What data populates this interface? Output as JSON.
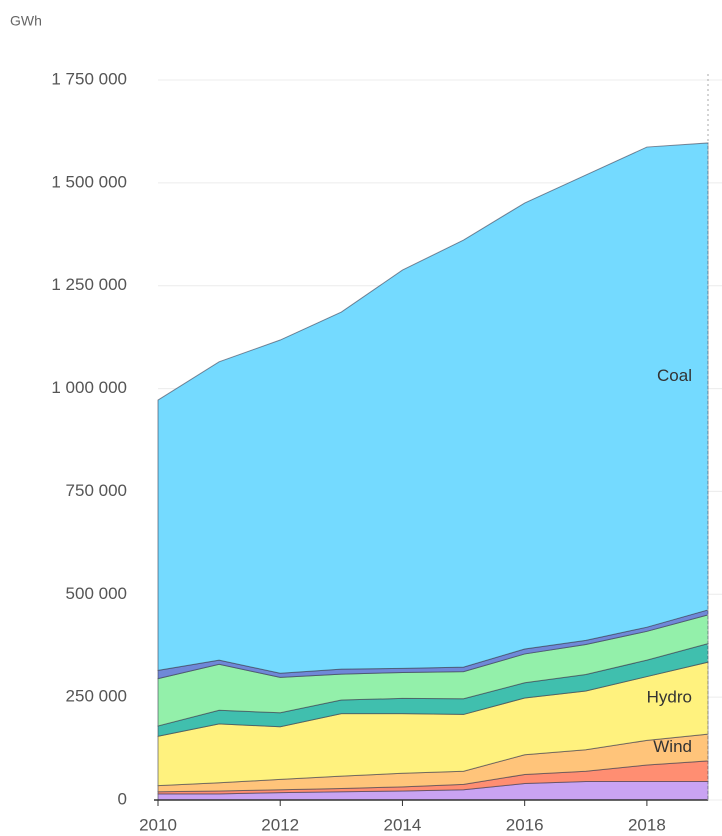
{
  "chart_data": {
    "type": "stacked_area",
    "y_label": "GWh",
    "x": [
      2010,
      2011,
      2012,
      2013,
      2014,
      2015,
      2016,
      2017,
      2018,
      2019
    ],
    "xlim": [
      2010,
      2019
    ],
    "xticks": [
      2010,
      2012,
      2014,
      2016,
      2018
    ],
    "ylim": [
      0,
      1750000
    ],
    "yticks": [
      0,
      {
        "value": 250000,
        "label": "250 000"
      },
      {
        "value": 500000,
        "label": "500 000"
      },
      {
        "value": 750000,
        "label": "750 000"
      },
      {
        "value": 1000000,
        "label": "1 000 000"
      },
      {
        "value": 1250000,
        "label": "1 250 000"
      },
      {
        "value": 1500000,
        "label": "1 500 000"
      },
      {
        "value": 1750000,
        "label": "1 750 000"
      }
    ],
    "grid": true,
    "series": [
      {
        "color": "#c9a3f2",
        "values": [
          15000,
          15000,
          18000,
          20000,
          22000,
          25000,
          40000,
          45000,
          45000,
          45000
        ]
      },
      {
        "color": "#ff8e72",
        "values": [
          5000,
          7000,
          7000,
          8000,
          10000,
          13000,
          22000,
          25000,
          40000,
          50000
        ]
      },
      {
        "name": "Wind",
        "color": "#ffc47a",
        "values": [
          15000,
          20000,
          25000,
          30000,
          33000,
          32000,
          48000,
          52000,
          60000,
          65000
        ]
      },
      {
        "name": "Hydro",
        "color": "#fff27e",
        "values": [
          120000,
          143000,
          128000,
          152000,
          145000,
          138000,
          138000,
          143000,
          155000,
          175000
        ]
      },
      {
        "color": "#40bfae",
        "values": [
          25000,
          33000,
          34000,
          33000,
          37000,
          38000,
          37000,
          40000,
          40000,
          45000
        ]
      },
      {
        "color": "#93f0aa",
        "values": [
          115000,
          112000,
          86000,
          63000,
          63000,
          66000,
          70000,
          73000,
          70000,
          70000
        ]
      },
      {
        "color": "#6f88d8",
        "values": [
          20000,
          10000,
          10000,
          12000,
          10000,
          11000,
          12000,
          10000,
          10000,
          12000
        ]
      },
      {
        "name": "Coal",
        "color": "#74daff",
        "values": [
          657000,
          725000,
          810000,
          868000,
          968000,
          1038000,
          1084000,
          1131000,
          1167000,
          1135000
        ]
      }
    ]
  }
}
